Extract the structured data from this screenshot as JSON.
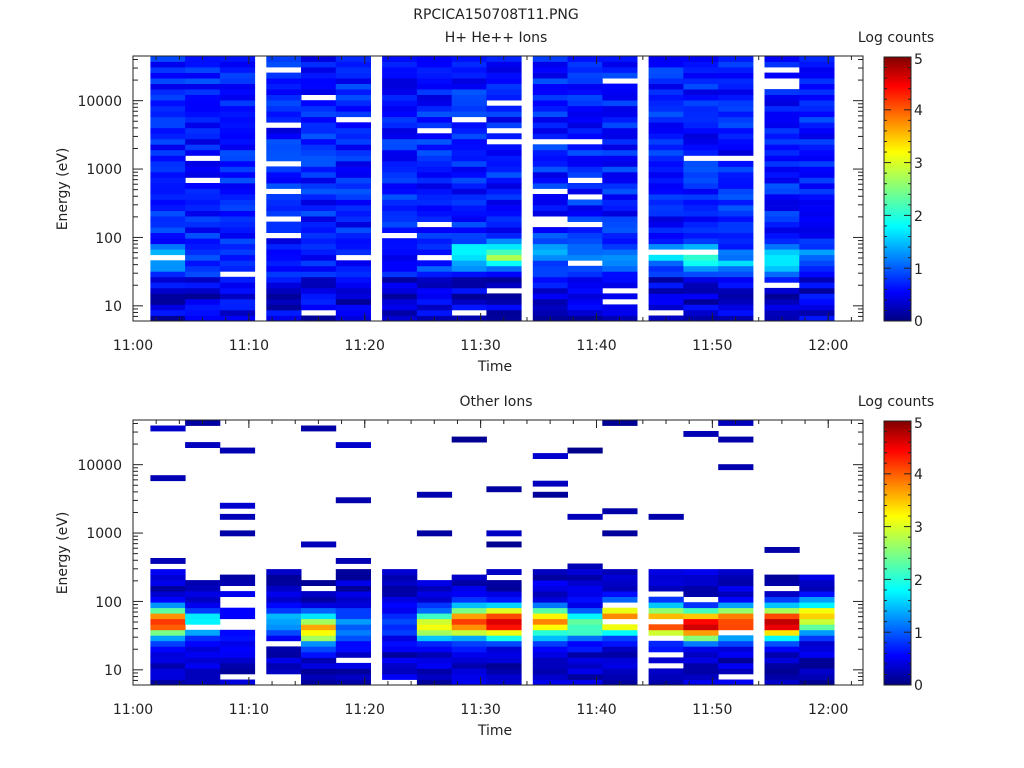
{
  "figure_title": "RPCICA150708T11.PNG",
  "chart_data": [
    {
      "type": "heatmap",
      "title": "H+ He++ Ions",
      "xlabel": "Time",
      "ylabel": "Energy (eV)",
      "x_range": [
        "11:00",
        "12:03"
      ],
      "x_ticks": [
        "11:00",
        "11:10",
        "11:20",
        "11:30",
        "11:40",
        "11:50",
        "12:00"
      ],
      "y_scale": "log",
      "y_range": [
        6,
        45000
      ],
      "y_ticks": [
        "10",
        "100",
        "1000",
        "10000"
      ],
      "colorbar": {
        "label": "Log counts",
        "range": [
          0,
          5
        ],
        "ticks": [
          "0",
          "1",
          "2",
          "3",
          "4",
          "5"
        ]
      },
      "grid": false,
      "columns": [
        {
          "time": "11:03",
          "low_energy_peak": {
            "energy": 50,
            "log_counts": 1.8
          }
        },
        {
          "time": "11:06",
          "low_energy_peak": {
            "energy": 40,
            "log_counts": 0.8
          }
        },
        {
          "time": "11:09",
          "low_energy_peak": {
            "energy": 45,
            "log_counts": 0.7
          }
        },
        {
          "time": "11:13",
          "low_energy_peak": {
            "energy": 45,
            "log_counts": 0.6
          }
        },
        {
          "time": "11:16",
          "low_energy_peak": {
            "energy": 50,
            "log_counts": 0.7
          }
        },
        {
          "time": "11:19",
          "low_energy_peak": {
            "energy": 45,
            "log_counts": 0.6
          }
        },
        {
          "time": "11:23",
          "low_energy_peak": {
            "energy": 45,
            "log_counts": 0.8
          }
        },
        {
          "time": "11:26",
          "low_energy_peak": {
            "energy": 45,
            "log_counts": 1.0
          }
        },
        {
          "time": "11:29",
          "low_energy_peak": {
            "energy": 55,
            "log_counts": 2.1
          }
        },
        {
          "time": "11:32",
          "low_energy_peak": {
            "energy": 55,
            "log_counts": 2.6
          }
        },
        {
          "time": "11:36",
          "low_energy_peak": {
            "energy": 60,
            "log_counts": 1.6
          }
        },
        {
          "time": "11:39",
          "low_energy_peak": {
            "energy": 55,
            "log_counts": 1.2
          }
        },
        {
          "time": "11:42",
          "low_energy_peak": {
            "energy": 50,
            "log_counts": 1.3
          }
        },
        {
          "time": "11:46",
          "low_energy_peak": {
            "energy": 55,
            "log_counts": 1.7
          }
        },
        {
          "time": "11:49",
          "low_energy_peak": {
            "energy": 50,
            "log_counts": 2.4
          }
        },
        {
          "time": "11:52",
          "low_energy_peak": {
            "energy": 45,
            "log_counts": 1.5
          }
        },
        {
          "time": "11:56",
          "low_energy_peak": {
            "energy": 45,
            "log_counts": 2.0
          }
        },
        {
          "time": "11:59",
          "low_energy_peak": {
            "energy": 50,
            "log_counts": 1.4
          }
        }
      ]
    },
    {
      "type": "heatmap",
      "title": "Other Ions",
      "xlabel": "Time",
      "ylabel": "Energy (eV)",
      "x_range": [
        "11:00",
        "12:03"
      ],
      "x_ticks": [
        "11:00",
        "11:10",
        "11:20",
        "11:30",
        "11:40",
        "11:50",
        "12:00"
      ],
      "y_scale": "log",
      "y_range": [
        6,
        45000
      ],
      "y_ticks": [
        "10",
        "100",
        "1000",
        "10000"
      ],
      "colorbar": {
        "label": "Log counts",
        "range": [
          0,
          5
        ],
        "ticks": [
          "0",
          "1",
          "2",
          "3",
          "4",
          "5"
        ]
      },
      "grid": false,
      "columns": [
        {
          "time": "11:03",
          "peak": {
            "energy": 50,
            "log_counts": 4.0
          }
        },
        {
          "time": "11:06",
          "peak": {
            "energy": 50,
            "log_counts": 1.7
          }
        },
        {
          "time": "11:09",
          "peak": {
            "energy": 45,
            "log_counts": 0.9
          }
        },
        {
          "time": "11:13",
          "peak": {
            "energy": 50,
            "log_counts": 1.4
          }
        },
        {
          "time": "11:16",
          "peak": {
            "energy": 40,
            "log_counts": 3.4
          }
        },
        {
          "time": "11:19",
          "peak": {
            "energy": 45,
            "log_counts": 1.2
          }
        },
        {
          "time": "11:23",
          "peak": {
            "energy": 45,
            "log_counts": 0.8
          }
        },
        {
          "time": "11:26",
          "peak": {
            "energy": 45,
            "log_counts": 3.0
          }
        },
        {
          "time": "11:29",
          "peak": {
            "energy": 50,
            "log_counts": 4.0
          }
        },
        {
          "time": "11:32",
          "peak": {
            "energy": 50,
            "log_counts": 4.6
          }
        },
        {
          "time": "11:36",
          "peak": {
            "energy": 50,
            "log_counts": 3.5
          }
        },
        {
          "time": "11:39",
          "peak": {
            "energy": 45,
            "log_counts": 2.4
          }
        },
        {
          "time": "11:42",
          "peak": {
            "energy": 55,
            "log_counts": 3.8
          }
        },
        {
          "time": "11:46",
          "peak": {
            "energy": 50,
            "log_counts": 4.1
          }
        },
        {
          "time": "11:49",
          "peak": {
            "energy": 45,
            "log_counts": 4.7
          }
        },
        {
          "time": "11:52",
          "peak": {
            "energy": 50,
            "log_counts": 4.2
          }
        },
        {
          "time": "11:56",
          "peak": {
            "energy": 50,
            "log_counts": 4.7
          }
        },
        {
          "time": "11:59",
          "peak": {
            "energy": 60,
            "log_counts": 3.3
          }
        }
      ]
    }
  ]
}
